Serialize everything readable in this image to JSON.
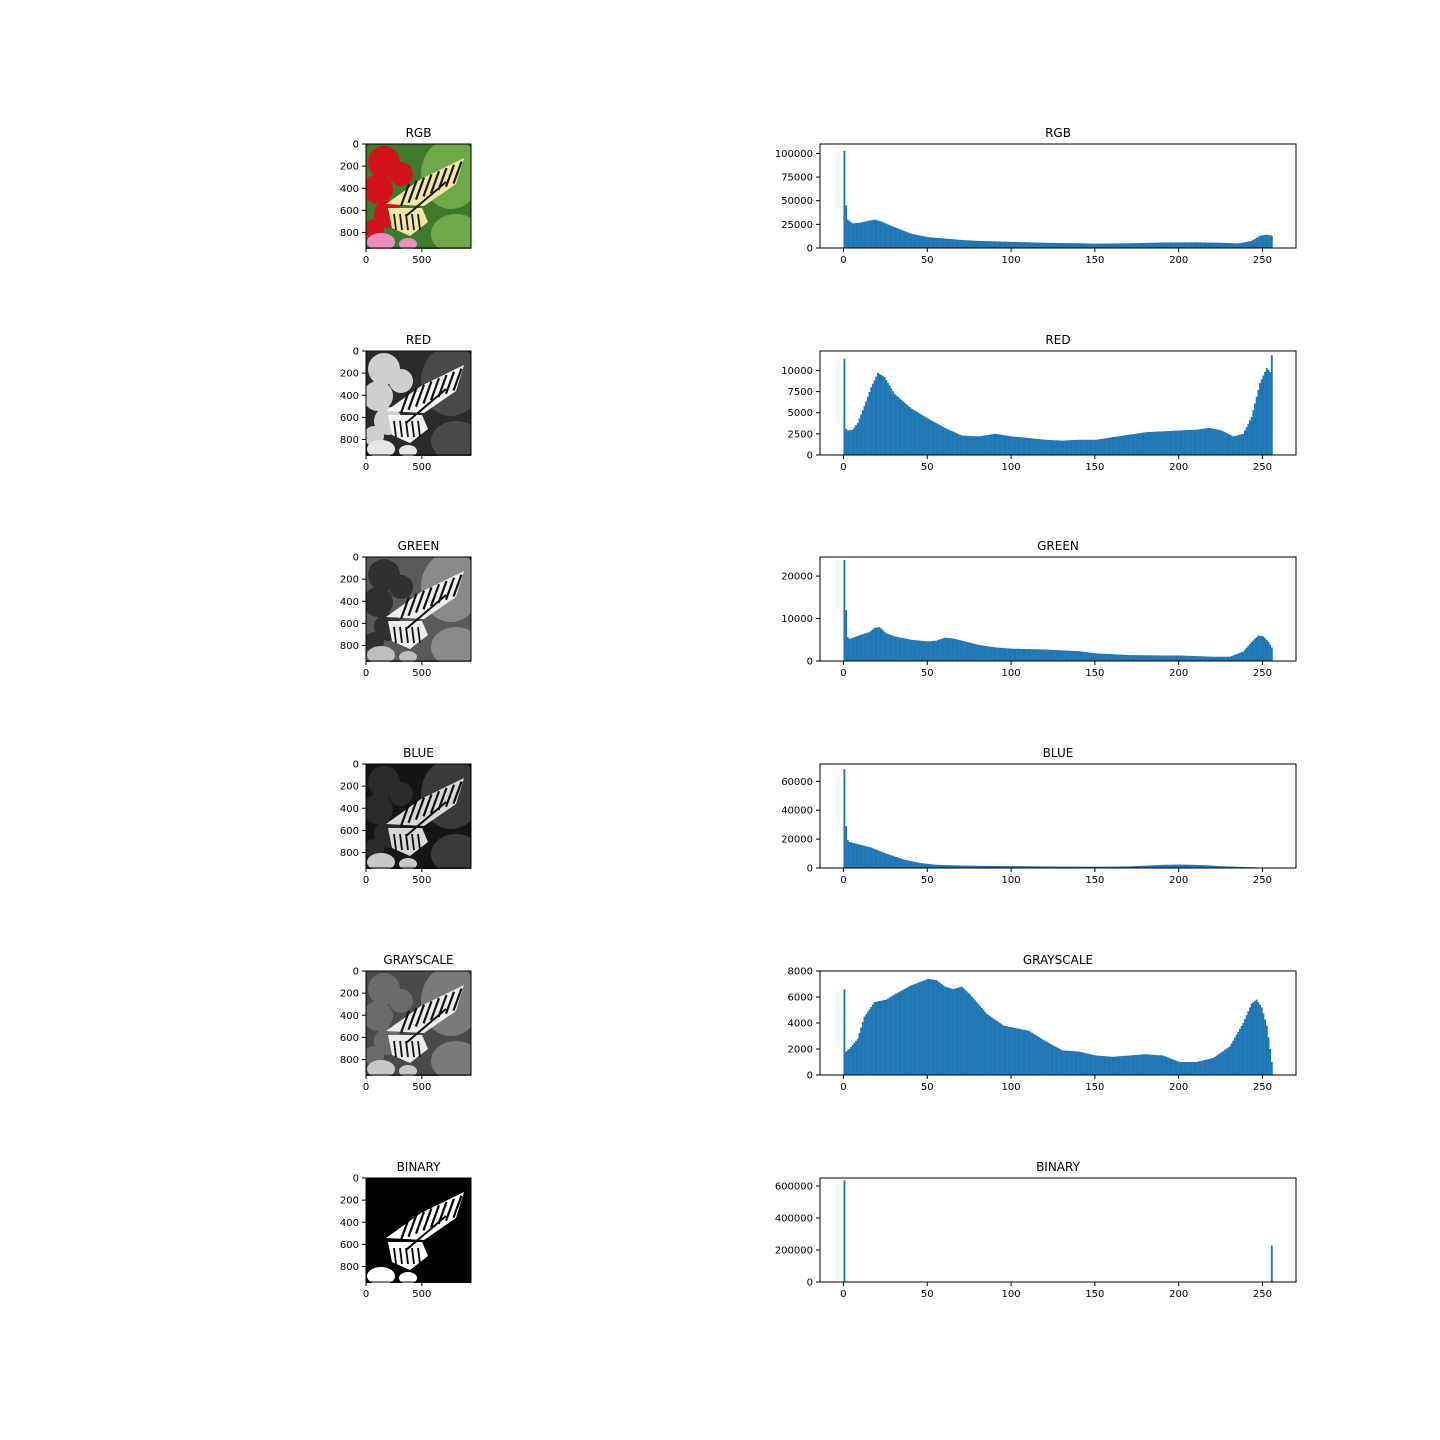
{
  "figure": {
    "colors": {
      "bar": "#1f77b4",
      "axis": "#000000",
      "background": "#ffffff"
    },
    "image_icon": "butterfly-on-flower-photo"
  },
  "chart_data": [
    {
      "type": "image",
      "title": "RGB",
      "mode": "rgb",
      "xticks": [
        0,
        500
      ],
      "yticks": [
        0,
        200,
        400,
        600,
        800
      ],
      "xlim": [
        0,
        940
      ],
      "ylim": [
        940,
        0
      ]
    },
    {
      "type": "bar",
      "title": "RGB",
      "xlim": [
        -14,
        270
      ],
      "ylim": [
        0,
        110000
      ],
      "xticks": [
        0,
        50,
        100,
        150,
        200,
        250
      ],
      "yticks": [
        0,
        25000,
        50000,
        75000,
        100000
      ],
      "ytick_labels": [
        "0",
        "25000",
        "50000",
        "75000",
        "100000"
      ],
      "profile": [
        [
          0,
          38000
        ],
        [
          2,
          30000
        ],
        [
          5,
          26000
        ],
        [
          10,
          27000
        ],
        [
          15,
          29000
        ],
        [
          18,
          30000
        ],
        [
          22,
          28000
        ],
        [
          30,
          22000
        ],
        [
          40,
          15000
        ],
        [
          50,
          11500
        ],
        [
          60,
          10000
        ],
        [
          70,
          8500
        ],
        [
          80,
          7500
        ],
        [
          100,
          6500
        ],
        [
          120,
          5500
        ],
        [
          140,
          5000
        ],
        [
          150,
          4600
        ],
        [
          170,
          5000
        ],
        [
          190,
          5800
        ],
        [
          210,
          6000
        ],
        [
          225,
          5500
        ],
        [
          235,
          4800
        ],
        [
          243,
          7500
        ],
        [
          248,
          13000
        ],
        [
          252,
          14000
        ],
        [
          255,
          13000
        ]
      ],
      "spikes": [
        [
          0,
          103000
        ],
        [
          1,
          45000
        ]
      ]
    },
    {
      "type": "image",
      "title": "RED",
      "mode": "red",
      "xticks": [
        0,
        500
      ],
      "yticks": [
        0,
        200,
        400,
        600,
        800
      ],
      "xlim": [
        0,
        940
      ],
      "ylim": [
        940,
        0
      ]
    },
    {
      "type": "bar",
      "title": "RED",
      "xlim": [
        -14,
        270
      ],
      "ylim": [
        0,
        12300
      ],
      "xticks": [
        0,
        50,
        100,
        150,
        200,
        250
      ],
      "yticks": [
        0,
        2500,
        5000,
        7500,
        10000
      ],
      "ytick_labels": [
        "0",
        "2500",
        "5000",
        "7500",
        "10000"
      ],
      "profile": [
        [
          0,
          3300
        ],
        [
          2,
          2900
        ],
        [
          5,
          3000
        ],
        [
          8,
          3800
        ],
        [
          12,
          5800
        ],
        [
          16,
          8000
        ],
        [
          20,
          9700
        ],
        [
          24,
          9200
        ],
        [
          30,
          7200
        ],
        [
          40,
          5500
        ],
        [
          50,
          4300
        ],
        [
          60,
          3200
        ],
        [
          70,
          2300
        ],
        [
          80,
          2200
        ],
        [
          90,
          2500
        ],
        [
          100,
          2200
        ],
        [
          110,
          2000
        ],
        [
          120,
          1800
        ],
        [
          130,
          1700
        ],
        [
          140,
          1800
        ],
        [
          150,
          1800
        ],
        [
          160,
          2100
        ],
        [
          170,
          2400
        ],
        [
          180,
          2700
        ],
        [
          190,
          2800
        ],
        [
          200,
          2900
        ],
        [
          210,
          3000
        ],
        [
          218,
          3200
        ],
        [
          225,
          2900
        ],
        [
          232,
          2200
        ],
        [
          238,
          2500
        ],
        [
          243,
          4500
        ],
        [
          248,
          8500
        ],
        [
          252,
          10300
        ],
        [
          254,
          9800
        ],
        [
          255,
          8700
        ]
      ],
      "spikes": [
        [
          0,
          11400
        ],
        [
          255,
          11800
        ]
      ]
    },
    {
      "type": "image",
      "title": "GREEN",
      "mode": "green",
      "xticks": [
        0,
        500
      ],
      "yticks": [
        0,
        200,
        400,
        600,
        800
      ],
      "xlim": [
        0,
        940
      ],
      "ylim": [
        940,
        0
      ]
    },
    {
      "type": "bar",
      "title": "GREEN",
      "xlim": [
        -14,
        270
      ],
      "ylim": [
        0,
        24500
      ],
      "xticks": [
        0,
        50,
        100,
        150,
        200,
        250
      ],
      "yticks": [
        0,
        10000,
        20000
      ],
      "ytick_labels": [
        "0",
        "10000",
        "20000"
      ],
      "profile": [
        [
          0,
          6500
        ],
        [
          3,
          5200
        ],
        [
          6,
          5600
        ],
        [
          10,
          6200
        ],
        [
          15,
          6800
        ],
        [
          18,
          7800
        ],
        [
          21,
          8000
        ],
        [
          25,
          6500
        ],
        [
          30,
          5800
        ],
        [
          40,
          5000
        ],
        [
          50,
          4600
        ],
        [
          55,
          4800
        ],
        [
          60,
          5500
        ],
        [
          65,
          5300
        ],
        [
          70,
          4800
        ],
        [
          80,
          3800
        ],
        [
          90,
          3200
        ],
        [
          100,
          2900
        ],
        [
          120,
          2700
        ],
        [
          140,
          2300
        ],
        [
          150,
          1800
        ],
        [
          170,
          1400
        ],
        [
          190,
          1300
        ],
        [
          200,
          1300
        ],
        [
          220,
          1000
        ],
        [
          230,
          1000
        ],
        [
          238,
          2200
        ],
        [
          243,
          4500
        ],
        [
          247,
          6000
        ],
        [
          250,
          5800
        ],
        [
          253,
          4500
        ],
        [
          255,
          3200
        ]
      ],
      "spikes": [
        [
          0,
          23800
        ],
        [
          1,
          12000
        ]
      ]
    },
    {
      "type": "image",
      "title": "BLUE",
      "mode": "blue",
      "xticks": [
        0,
        500
      ],
      "yticks": [
        0,
        200,
        400,
        600,
        800
      ],
      "xlim": [
        0,
        940
      ],
      "ylim": [
        940,
        0
      ]
    },
    {
      "type": "bar",
      "title": "BLUE",
      "xlim": [
        -14,
        270
      ],
      "ylim": [
        0,
        72000
      ],
      "xticks": [
        0,
        50,
        100,
        150,
        200,
        250
      ],
      "yticks": [
        0,
        20000,
        40000,
        60000
      ],
      "ytick_labels": [
        "0",
        "20000",
        "40000",
        "60000"
      ],
      "profile": [
        [
          0,
          22000
        ],
        [
          3,
          18000
        ],
        [
          8,
          16500
        ],
        [
          15,
          14500
        ],
        [
          25,
          10000
        ],
        [
          35,
          6000
        ],
        [
          45,
          3500
        ],
        [
          55,
          2200
        ],
        [
          70,
          1700
        ],
        [
          90,
          1400
        ],
        [
          110,
          1200
        ],
        [
          130,
          1000
        ],
        [
          150,
          900
        ],
        [
          170,
          1100
        ],
        [
          190,
          2200
        ],
        [
          200,
          2400
        ],
        [
          215,
          2000
        ],
        [
          225,
          1200
        ],
        [
          240,
          600
        ],
        [
          247,
          400
        ],
        [
          249,
          0
        ],
        [
          255,
          0
        ]
      ],
      "spikes": [
        [
          0,
          68500
        ],
        [
          1,
          29000
        ]
      ]
    },
    {
      "type": "image",
      "title": "GRAYSCALE",
      "mode": "gray",
      "xticks": [
        0,
        500
      ],
      "yticks": [
        0,
        200,
        400,
        600,
        800
      ],
      "xlim": [
        0,
        940
      ],
      "ylim": [
        940,
        0
      ]
    },
    {
      "type": "bar",
      "title": "GRAYSCALE",
      "xlim": [
        -14,
        270
      ],
      "ylim": [
        0,
        8000
      ],
      "xticks": [
        0,
        50,
        100,
        150,
        200,
        250
      ],
      "yticks": [
        0,
        2000,
        4000,
        6000,
        8000
      ],
      "ytick_labels": [
        "0",
        "2000",
        "4000",
        "6000",
        "8000"
      ],
      "profile": [
        [
          0,
          1700
        ],
        [
          3,
          2000
        ],
        [
          8,
          2800
        ],
        [
          12,
          4500
        ],
        [
          18,
          5600
        ],
        [
          25,
          5800
        ],
        [
          30,
          6200
        ],
        [
          40,
          6900
        ],
        [
          50,
          7400
        ],
        [
          55,
          7300
        ],
        [
          60,
          6800
        ],
        [
          65,
          6600
        ],
        [
          70,
          6800
        ],
        [
          75,
          6200
        ],
        [
          85,
          4700
        ],
        [
          95,
          3800
        ],
        [
          110,
          3400
        ],
        [
          120,
          2600
        ],
        [
          130,
          1900
        ],
        [
          140,
          1800
        ],
        [
          150,
          1500
        ],
        [
          160,
          1400
        ],
        [
          170,
          1500
        ],
        [
          180,
          1600
        ],
        [
          190,
          1500
        ],
        [
          200,
          1000
        ],
        [
          210,
          1000
        ],
        [
          220,
          1300
        ],
        [
          230,
          2200
        ],
        [
          238,
          4000
        ],
        [
          243,
          5500
        ],
        [
          246,
          5800
        ],
        [
          249,
          5200
        ],
        [
          252,
          3800
        ],
        [
          254,
          2000
        ],
        [
          256,
          0
        ]
      ],
      "spikes": [
        [
          0,
          6600
        ]
      ]
    },
    {
      "type": "image",
      "title": "BINARY",
      "mode": "binary",
      "xticks": [
        0,
        500
      ],
      "yticks": [
        0,
        200,
        400,
        600,
        800
      ],
      "xlim": [
        0,
        940
      ],
      "ylim": [
        940,
        0
      ]
    },
    {
      "type": "bar",
      "title": "BINARY",
      "xlim": [
        -14,
        270
      ],
      "ylim": [
        0,
        650000
      ],
      "xticks": [
        0,
        50,
        100,
        150,
        200,
        250
      ],
      "yticks": [
        0,
        200000,
        400000,
        600000
      ],
      "ytick_labels": [
        "0",
        "200000",
        "400000",
        "600000"
      ],
      "profile": [],
      "spikes": [
        [
          0,
          635000
        ],
        [
          255,
          228000
        ]
      ]
    }
  ]
}
